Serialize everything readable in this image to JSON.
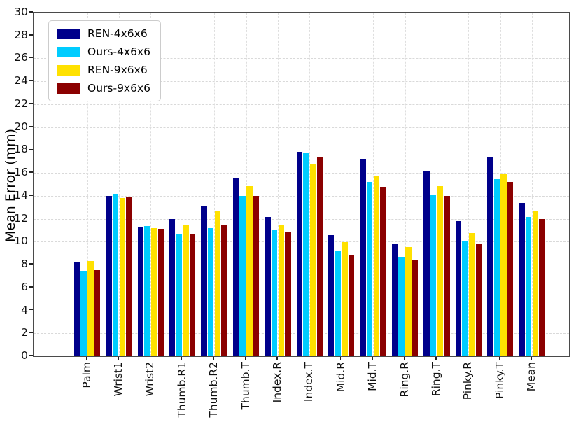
{
  "chart_data": {
    "type": "bar",
    "title": "",
    "xlabel": "",
    "ylabel": "Mean Error (mm)",
    "ylim": [
      0,
      30
    ],
    "ytick_step": 2,
    "grid": true,
    "legend_position": "upper-left",
    "categories": [
      "Palm",
      "Wrist1",
      "Wrist2",
      "Thumb.R1",
      "Thumb.R2",
      "Thumb.T",
      "Index.R",
      "Index.T",
      "Mid.R",
      "Mid.T",
      "Ring.R",
      "Ring.T",
      "Pinky.R",
      "Pinky.T",
      "Mean"
    ],
    "series": [
      {
        "name": "REN-4x6x6",
        "color": "#00008B",
        "values": [
          8.25,
          14.0,
          11.3,
          11.95,
          13.1,
          15.6,
          12.15,
          17.85,
          10.6,
          17.25,
          9.85,
          16.15,
          11.8,
          17.4,
          13.4
        ]
      },
      {
        "name": "Ours-4x6x6",
        "color": "#00CCFF",
        "values": [
          7.45,
          14.15,
          11.35,
          10.7,
          11.2,
          14.0,
          11.05,
          17.75,
          9.15,
          15.2,
          8.7,
          14.1,
          10.05,
          15.45,
          12.15
        ]
      },
      {
        "name": "REN-9x6x6",
        "color": "#FFE100",
        "values": [
          8.3,
          13.8,
          11.2,
          11.5,
          12.65,
          14.85,
          11.5,
          16.75,
          9.95,
          15.75,
          9.55,
          14.85,
          10.75,
          15.9,
          12.65
        ]
      },
      {
        "name": "Ours-9x6x6",
        "color": "#8B0000",
        "values": [
          7.5,
          13.85,
          11.15,
          10.7,
          11.4,
          14.0,
          10.8,
          17.35,
          8.85,
          14.8,
          8.4,
          14.0,
          9.75,
          15.2,
          12.0
        ]
      }
    ],
    "colors": {
      "grid": "#d9d9d9",
      "spine": "#4a4a4a",
      "tick": "#222222",
      "text": "#111111"
    }
  }
}
